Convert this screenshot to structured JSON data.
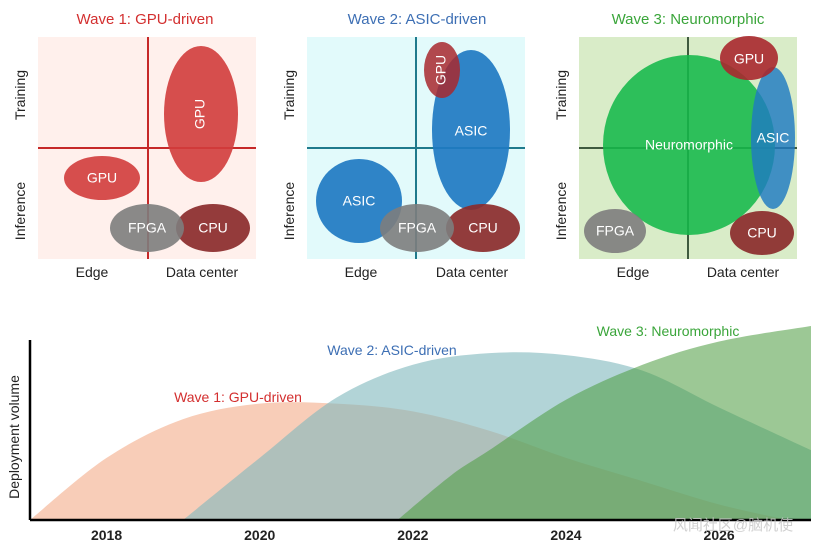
{
  "panels": [
    {
      "title": "Wave 1: GPU-driven",
      "title_color": "#d32f2f",
      "bg_color": "#fff0ec",
      "line_color": "#c62828",
      "y_top_label": "Training",
      "y_bottom_label": "Inference",
      "x_left_label": "Edge",
      "x_right_label": "Data center",
      "chips": {
        "gpu_train": "GPU",
        "gpu_infer": "GPU",
        "fpga": "FPGA",
        "cpu": "CPU"
      }
    },
    {
      "title": "Wave 2: ASIC-driven",
      "title_color": "#3d6fb4",
      "bg_color": "#e2fafb",
      "line_color": "#1f7a8c",
      "y_top_label": "Training",
      "y_bottom_label": "Inference",
      "x_left_label": "Edge",
      "x_right_label": "Data center",
      "chips": {
        "gpu": "GPU",
        "asic_dc": "ASIC",
        "asic_edge": "ASIC",
        "fpga": "FPGA",
        "cpu": "CPU"
      }
    },
    {
      "title": "Wave 3: Neuromorphic",
      "title_color": "#3aa53a",
      "bg_color": "#d9ecc8",
      "line_color": "#3f5a3f",
      "y_top_label": "Training",
      "y_bottom_label": "Inference",
      "x_left_label": "Edge",
      "x_right_label": "Data center",
      "chips": {
        "neuromorphic": "Neuromorphic",
        "gpu": "GPU",
        "asic": "ASIC",
        "fpga": "FPGA",
        "cpu": "CPU"
      }
    }
  ],
  "chart_data": {
    "type": "area",
    "ylabel": "Deployment volume",
    "xlabel": "",
    "xlim": [
      2017.0,
      2027.2
    ],
    "ylim": [
      0,
      100
    ],
    "x_ticks": [
      "2018",
      "2020",
      "2022",
      "2024",
      "2026"
    ],
    "x_tick_values": [
      2018,
      2020,
      2022,
      2024,
      2026
    ],
    "series": [
      {
        "name": "Wave 1: GPU-driven",
        "color": "#f5b89a",
        "opacity": 0.7,
        "x": [
          2017.0,
          2018.0,
          2019.0,
          2020.0,
          2021.0,
          2022.0,
          2023.0,
          2024.0,
          2025.0,
          2026.0,
          2026.9
        ],
        "values": [
          0,
          32,
          52,
          60,
          60,
          56,
          46,
          32,
          20,
          8,
          0
        ]
      },
      {
        "name": "Wave 2: ASIC-driven",
        "color": "#7fb8bd",
        "opacity": 0.6,
        "x": [
          2019.0,
          2020.0,
          2021.0,
          2022.0,
          2023.0,
          2024.0,
          2025.0,
          2026.0,
          2027.2
        ],
        "values": [
          0,
          32,
          63,
          80,
          86,
          85,
          77,
          58,
          36
        ]
      },
      {
        "name": "Wave 3: Neuromorphic",
        "color": "#4b9a3e",
        "opacity": 0.55,
        "x": [
          2021.8,
          2022.5,
          2023.0,
          2024.0,
          2025.0,
          2026.0,
          2027.2
        ],
        "values": [
          0,
          23,
          36,
          62,
          80,
          92,
          100
        ]
      }
    ]
  },
  "watermark": "风闻社区@脑机使"
}
